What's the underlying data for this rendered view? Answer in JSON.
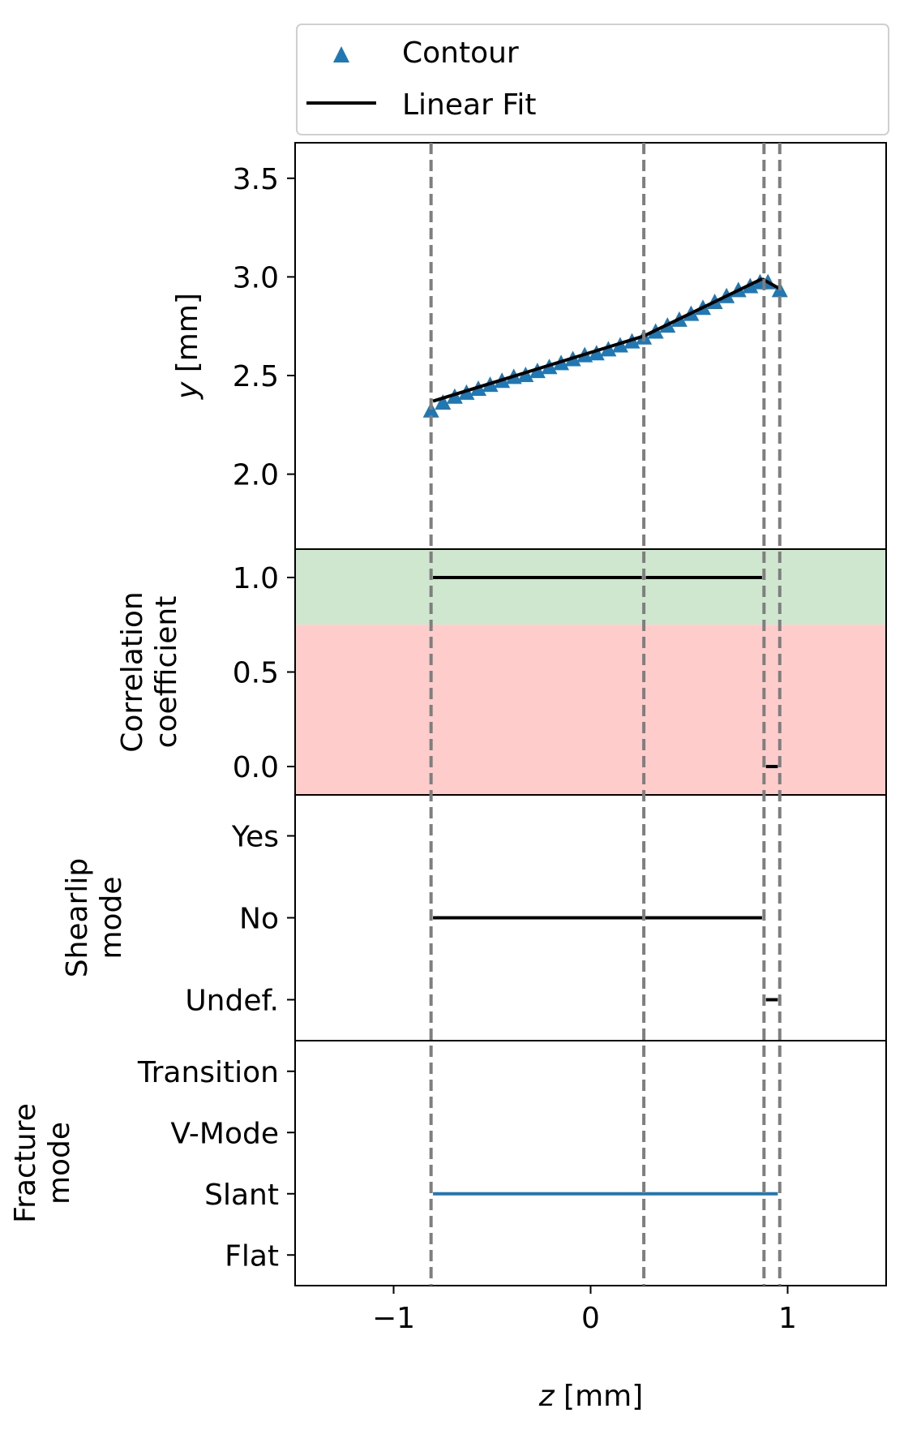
{
  "chart_data": {
    "type": "line",
    "shared_x": {
      "label": "z [mm]",
      "xlim": [
        -1.5,
        1.5
      ],
      "ticks": [
        -1,
        0,
        1
      ],
      "tick_labels": [
        "−1",
        "0",
        "1"
      ]
    },
    "segment_boundaries": [
      -0.81,
      0.27,
      0.88,
      0.96
    ],
    "legend": {
      "placement": "top",
      "entries": [
        {
          "label": "Contour",
          "marker": "triangle",
          "color": "#1f77b4"
        },
        {
          "label": "Linear Fit",
          "marker": "line",
          "color": "#000000"
        }
      ]
    },
    "panels": [
      {
        "id": "profile",
        "ylabel": "y [mm]",
        "ylim": [
          1.62,
          3.68
        ],
        "yticks": [
          2.0,
          2.5,
          3.0,
          3.5
        ],
        "ytick_labels": [
          "2.0",
          "2.5",
          "3.0",
          "3.5"
        ],
        "series": [
          {
            "name": "Contour",
            "kind": "scatter",
            "color": "#1f77b4",
            "x": [
              -0.81,
              -0.75,
              -0.69,
              -0.63,
              -0.57,
              -0.51,
              -0.45,
              -0.39,
              -0.33,
              -0.27,
              -0.21,
              -0.15,
              -0.09,
              -0.03,
              0.03,
              0.09,
              0.15,
              0.21,
              0.27,
              0.33,
              0.39,
              0.45,
              0.51,
              0.57,
              0.63,
              0.69,
              0.75,
              0.81,
              0.86,
              0.9,
              0.96
            ],
            "y": [
              2.32,
              2.36,
              2.39,
              2.41,
              2.43,
              2.45,
              2.47,
              2.49,
              2.5,
              2.52,
              2.54,
              2.56,
              2.58,
              2.6,
              2.61,
              2.63,
              2.65,
              2.67,
              2.69,
              2.72,
              2.75,
              2.78,
              2.81,
              2.84,
              2.87,
              2.9,
              2.93,
              2.95,
              2.97,
              2.97,
              2.93
            ]
          },
          {
            "name": "Linear Fit",
            "kind": "line",
            "color": "#000000",
            "segments": [
              {
                "x": [
                  -0.8,
                  0.27
                ],
                "y": [
                  2.37,
                  2.7
                ]
              },
              {
                "x": [
                  0.27,
                  0.87
                ],
                "y": [
                  2.7,
                  2.99
                ]
              },
              {
                "x": [
                  0.87,
                  0.96
                ],
                "y": [
                  2.99,
                  2.94
                ]
              }
            ]
          }
        ]
      },
      {
        "id": "correlation",
        "ylabel": "Correlation coefficient",
        "ylabel_lines": [
          "Correlation",
          "coefficient"
        ],
        "ylim": [
          -0.15,
          1.15
        ],
        "yticks": [
          0.0,
          0.5,
          1.0
        ],
        "ytick_labels": [
          "0.0",
          "0.5",
          "1.0"
        ],
        "bands": [
          {
            "from": 0.75,
            "to": 1.15,
            "color": "#cfe6cf"
          },
          {
            "from": -0.15,
            "to": 0.75,
            "color": "#fdcccb"
          }
        ],
        "segments": [
          {
            "x": [
              -0.8,
              0.26
            ],
            "y": 1.0,
            "color": "#000000"
          },
          {
            "x": [
              0.28,
              0.87
            ],
            "y": 1.0,
            "color": "#000000"
          },
          {
            "x": [
              0.89,
              0.95
            ],
            "y": 0.0,
            "color": "#000000"
          }
        ]
      },
      {
        "id": "shearlip",
        "ylabel": "Shearlip mode",
        "ylabel_lines": [
          "Shearlip",
          "mode"
        ],
        "categories": [
          "Undef.",
          "No",
          "Yes"
        ],
        "ylim": [
          -0.5,
          2.5
        ],
        "segments": [
          {
            "x": [
              -0.8,
              0.87
            ],
            "category": "No",
            "color": "#000000"
          },
          {
            "x": [
              0.89,
              0.95
            ],
            "category": "Undef.",
            "color": "#000000"
          }
        ]
      },
      {
        "id": "fracture",
        "ylabel": "Fracture mode",
        "ylabel_lines": [
          "Fracture",
          "mode"
        ],
        "categories": [
          "Flat",
          "Slant",
          "V-Mode",
          "Transition"
        ],
        "ylim": [
          -0.5,
          3.5
        ],
        "segments": [
          {
            "x": [
              -0.8,
              0.95
            ],
            "category": "Slant",
            "color": "#1f77b4"
          }
        ]
      }
    ]
  }
}
